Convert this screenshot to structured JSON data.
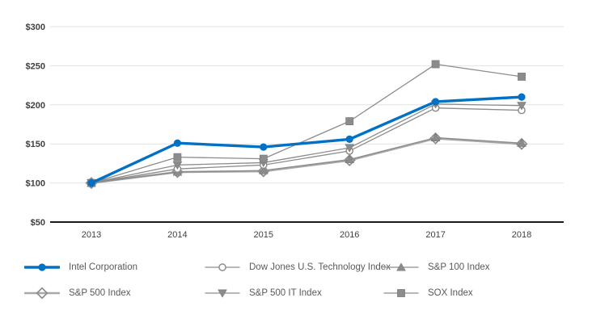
{
  "colors": {
    "accent_blue": "#0071C5",
    "series_gray": "#8C8C8C",
    "series_light_gray": "#A8A8A8",
    "gridline": "#E2E2E2",
    "axis_line": "#1A1A1A",
    "tick_label": "#3F3F3F",
    "legend_text": "#595959",
    "background": "#FFFFFF"
  },
  "chart_data": {
    "type": "line",
    "title": "",
    "xlabel": "",
    "ylabel": "",
    "x_labels": [
      "2013",
      "2014",
      "2015",
      "2016",
      "2017",
      "2018"
    ],
    "y_ticks": [
      {
        "label": "$300",
        "value": 300
      },
      {
        "label": "$250",
        "value": 250
      },
      {
        "label": "$200",
        "value": 200
      },
      {
        "label": "$150",
        "value": 150
      },
      {
        "label": "$100",
        "value": 100
      },
      {
        "label": "$50",
        "value": 50
      }
    ],
    "ylim": [
      50,
      300
    ],
    "grid": "horizontal",
    "legend_position": "bottom",
    "series": [
      {
        "name": "Intel Corporation",
        "marker": "filled-circle",
        "color": "#0071C5",
        "line_color": "#0071C5",
        "line_width": 3.4,
        "values": [
          100,
          151,
          146,
          156,
          204,
          210
        ]
      },
      {
        "name": "Dow Jones U.S. Technology Index",
        "marker": "open-circle",
        "color": "#8C8C8C",
        "line_color": "#8C8C8C",
        "line_width": 1.3,
        "values": [
          100,
          118,
          123,
          141,
          196,
          193
        ]
      },
      {
        "name": "S&P 100 Index",
        "marker": "filled-triangle-up",
        "color": "#8C8C8C",
        "line_color": "#8C8C8C",
        "line_width": 1.3,
        "values": [
          100,
          114,
          116,
          130,
          158,
          151
        ]
      },
      {
        "name": "S&P 500 Index",
        "marker": "open-diamond",
        "color": "#8C8C8C",
        "line_color": "#A8A8A8",
        "line_width": 2.6,
        "values": [
          100,
          114,
          115,
          129,
          157,
          150
        ]
      },
      {
        "name": "S&P 500 IT Index",
        "marker": "filled-triangle-down",
        "color": "#8C8C8C",
        "line_color": "#8C8C8C",
        "line_width": 1.3,
        "values": [
          100,
          123,
          126,
          145,
          201,
          199
        ]
      },
      {
        "name": "SOX Index",
        "marker": "filled-square",
        "color": "#8C8C8C",
        "line_color": "#8C8C8C",
        "line_width": 1.3,
        "values": [
          100,
          133,
          131,
          179,
          252,
          236
        ]
      }
    ]
  }
}
